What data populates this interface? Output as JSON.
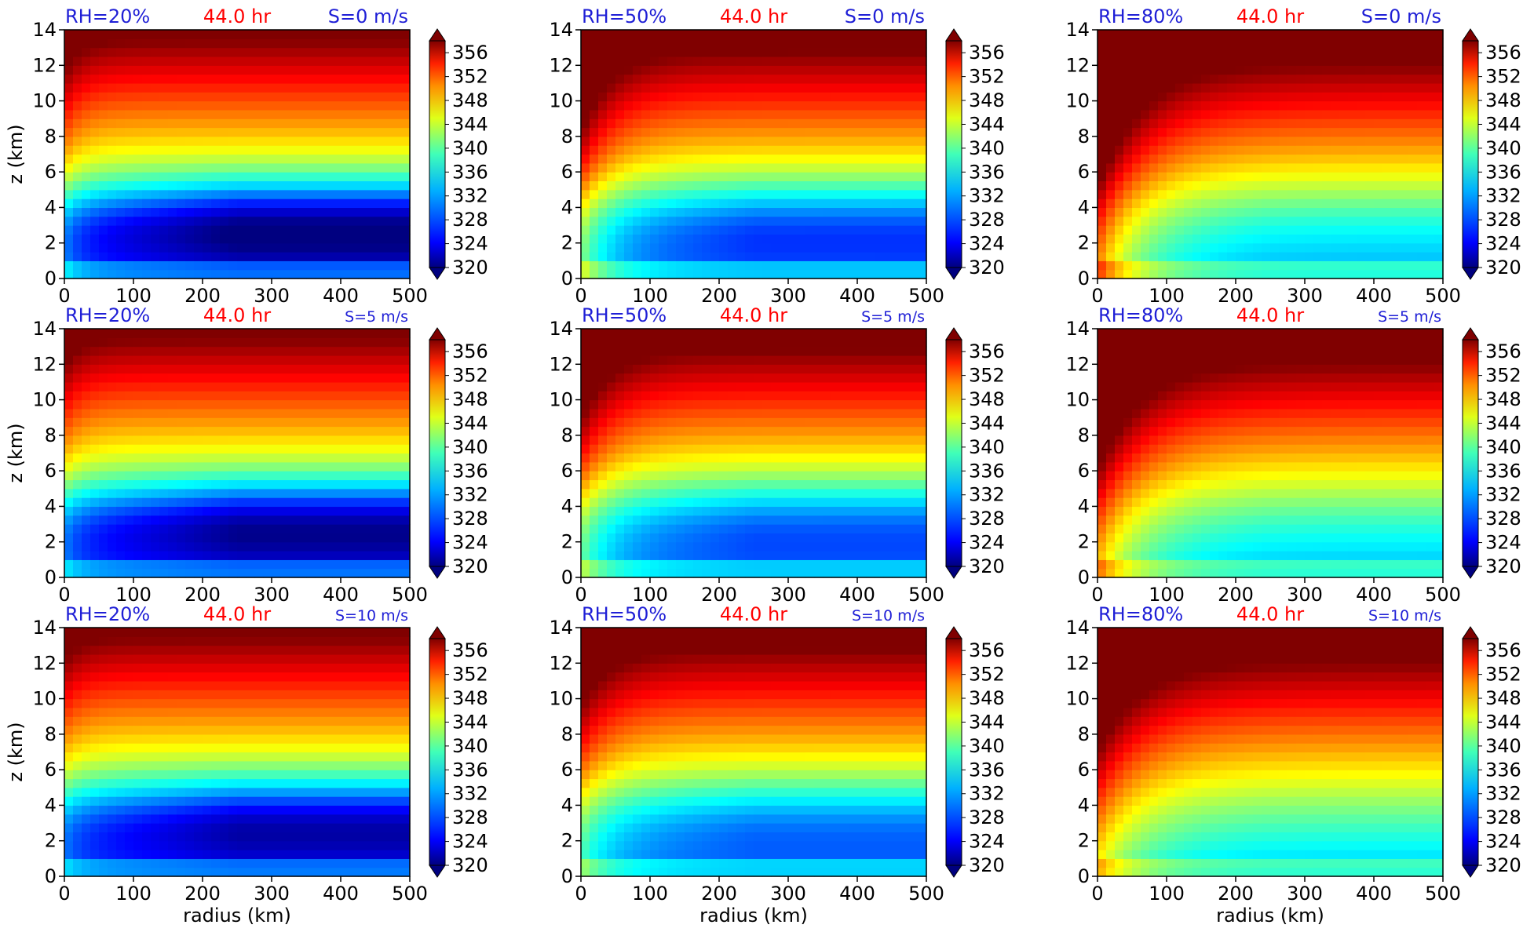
{
  "figure": {
    "colors": {
      "blue_text": "#1f1fd6",
      "red_text": "#ff0000"
    }
  },
  "colorbar": {
    "ticks": [
      356,
      352,
      348,
      344,
      340,
      336,
      332,
      328,
      324,
      320
    ]
  },
  "chart_data": [
    {
      "type": "heatmap",
      "rh": "RH=20%",
      "time": "44.0 hr",
      "shear": "S=0 m/s",
      "xlabel": "",
      "ylabel": "z (km)",
      "x_ticks": [
        "0",
        "100",
        "200",
        "300",
        "400",
        "500"
      ],
      "y_ticks": [
        "0",
        "2",
        "4",
        "6",
        "8",
        "10",
        "12",
        "14"
      ],
      "xlim": [
        0,
        500
      ],
      "ylim": [
        0,
        14
      ],
      "clim": [
        320,
        358
      ],
      "colormap": "jet"
    },
    {
      "type": "heatmap",
      "rh": "RH=50%",
      "time": "44.0 hr",
      "shear": "S=0 m/s",
      "xlabel": "",
      "ylabel": "",
      "x_ticks": [
        "0",
        "100",
        "200",
        "300",
        "400",
        "500"
      ],
      "y_ticks": [
        "0",
        "2",
        "4",
        "6",
        "8",
        "10",
        "12",
        "14"
      ],
      "xlim": [
        0,
        500
      ],
      "ylim": [
        0,
        14
      ],
      "clim": [
        320,
        358
      ],
      "colormap": "jet"
    },
    {
      "type": "heatmap",
      "rh": "RH=80%",
      "time": "44.0 hr",
      "shear": "S=0 m/s",
      "xlabel": "",
      "ylabel": "",
      "x_ticks": [
        "0",
        "100",
        "200",
        "300",
        "400",
        "500"
      ],
      "y_ticks": [
        "0",
        "2",
        "4",
        "6",
        "8",
        "10",
        "12",
        "14"
      ],
      "xlim": [
        0,
        500
      ],
      "ylim": [
        0,
        14
      ],
      "clim": [
        320,
        358
      ],
      "colormap": "jet"
    },
    {
      "type": "heatmap",
      "rh": "RH=20%",
      "time": "44.0 hr",
      "shear": "S=5 m/s",
      "xlabel": "",
      "ylabel": "z (km)",
      "x_ticks": [
        "0",
        "100",
        "200",
        "300",
        "400",
        "500"
      ],
      "y_ticks": [
        "0",
        "2",
        "4",
        "6",
        "8",
        "10",
        "12",
        "14"
      ],
      "xlim": [
        0,
        500
      ],
      "ylim": [
        0,
        14
      ],
      "clim": [
        320,
        358
      ],
      "colormap": "jet"
    },
    {
      "type": "heatmap",
      "rh": "RH=50%",
      "time": "44.0 hr",
      "shear": "S=5 m/s",
      "xlabel": "",
      "ylabel": "",
      "x_ticks": [
        "0",
        "100",
        "200",
        "300",
        "400",
        "500"
      ],
      "y_ticks": [
        "0",
        "2",
        "4",
        "6",
        "8",
        "10",
        "12",
        "14"
      ],
      "xlim": [
        0,
        500
      ],
      "ylim": [
        0,
        14
      ],
      "clim": [
        320,
        358
      ],
      "colormap": "jet"
    },
    {
      "type": "heatmap",
      "rh": "RH=80%",
      "time": "44.0 hr",
      "shear": "S=5 m/s",
      "xlabel": "",
      "ylabel": "",
      "x_ticks": [
        "0",
        "100",
        "200",
        "300",
        "400",
        "500"
      ],
      "y_ticks": [
        "0",
        "2",
        "4",
        "6",
        "8",
        "10",
        "12",
        "14"
      ],
      "xlim": [
        0,
        500
      ],
      "ylim": [
        0,
        14
      ],
      "clim": [
        320,
        358
      ],
      "colormap": "jet"
    },
    {
      "type": "heatmap",
      "rh": "RH=20%",
      "time": "44.0 hr",
      "shear": "S=10 m/s",
      "xlabel": "radius (km)",
      "ylabel": "z (km)",
      "x_ticks": [
        "0",
        "100",
        "200",
        "300",
        "400",
        "500"
      ],
      "y_ticks": [
        "0",
        "2",
        "4",
        "6",
        "8",
        "10",
        "12",
        "14"
      ],
      "xlim": [
        0,
        500
      ],
      "ylim": [
        0,
        14
      ],
      "clim": [
        320,
        358
      ],
      "colormap": "jet"
    },
    {
      "type": "heatmap",
      "rh": "RH=50%",
      "time": "44.0 hr",
      "shear": "S=10 m/s",
      "xlabel": "radius (km)",
      "ylabel": "",
      "x_ticks": [
        "0",
        "100",
        "200",
        "300",
        "400",
        "500"
      ],
      "y_ticks": [
        "0",
        "2",
        "4",
        "6",
        "8",
        "10",
        "12",
        "14"
      ],
      "xlim": [
        0,
        500
      ],
      "ylim": [
        0,
        14
      ],
      "clim": [
        320,
        358
      ],
      "colormap": "jet"
    },
    {
      "type": "heatmap",
      "rh": "RH=80%",
      "time": "44.0 hr",
      "shear": "S=10 m/s",
      "xlabel": "radius (km)",
      "ylabel": "",
      "x_ticks": [
        "0",
        "100",
        "200",
        "300",
        "400",
        "500"
      ],
      "y_ticks": [
        "0",
        "2",
        "4",
        "6",
        "8",
        "10",
        "12",
        "14"
      ],
      "xlim": [
        0,
        500
      ],
      "ylim": [
        0,
        14
      ],
      "clim": [
        320,
        358
      ],
      "colormap": "jet"
    }
  ]
}
